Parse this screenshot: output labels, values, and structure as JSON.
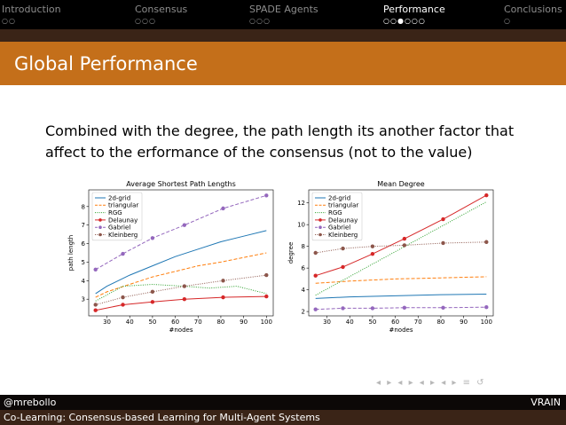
{
  "nav": {
    "sections": [
      {
        "label": "Introduction",
        "dots": "○○",
        "active": false
      },
      {
        "label": "Consensus",
        "dots": "○○○",
        "active": false
      },
      {
        "label": "SPADE Agents",
        "dots": "○○○",
        "active": false
      },
      {
        "label": "Performance",
        "dots": "○○●○○○",
        "active": true
      },
      {
        "label": "Conclusions",
        "dots": "○",
        "active": false
      }
    ]
  },
  "slide": {
    "title": "Global Performance",
    "body": "Combined with the degree, the path length its another factor that affect to the erformance of the consensus (not to the value)"
  },
  "footer": {
    "author": "@mrebollo",
    "institution": "VRAIN",
    "talk_title": "Co-Learning: Consensus-based Learning for Multi-Agent Systems"
  },
  "controls": {
    "nav_symbols": "◂ ▸ ◂ ▸ ◂ ▸ ◂ ▸ ≡ ↺"
  },
  "colors": {
    "nav_bg": "#000000",
    "title_bg": "#c46f1a",
    "footer_dark": "#0c0807",
    "footer_brown": "#3a2417"
  },
  "chart_data": [
    {
      "type": "line",
      "title": "Average Shortest Path Lengths",
      "xlabel": "#nodes",
      "ylabel": "path length",
      "xlim": [
        22,
        103
      ],
      "ylim": [
        2.1,
        8.9
      ],
      "xticks": [
        30,
        40,
        50,
        60,
        70,
        80,
        90,
        100
      ],
      "yticks": [
        3,
        4,
        5,
        6,
        7,
        8
      ],
      "legend": "top-left",
      "series": [
        {
          "name": "2d-grid",
          "color": "#1f77b4",
          "dash": "solid",
          "marker": false,
          "x": [
            25,
            30,
            35,
            40,
            50,
            60,
            70,
            80,
            90,
            100
          ],
          "y": [
            3.3,
            3.7,
            4.0,
            4.3,
            4.8,
            5.3,
            5.7,
            6.1,
            6.4,
            6.7
          ]
        },
        {
          "name": "triangular",
          "color": "#ff7f0e",
          "dash": "dashed",
          "marker": false,
          "x": [
            25,
            30,
            35,
            40,
            50,
            60,
            70,
            80,
            90,
            100
          ],
          "y": [
            3.1,
            3.4,
            3.6,
            3.8,
            4.2,
            4.5,
            4.8,
            5.0,
            5.25,
            5.5
          ]
        },
        {
          "name": "RGG",
          "color": "#2ca02c",
          "dash": "dotted",
          "marker": false,
          "x": [
            25,
            37,
            50,
            64,
            75,
            87,
            100
          ],
          "y": [
            2.9,
            3.7,
            3.8,
            3.7,
            3.6,
            3.7,
            3.3
          ]
        },
        {
          "name": "Delaunay",
          "color": "#d62728",
          "dash": "solid",
          "marker": true,
          "x": [
            25,
            37,
            50,
            64,
            81,
            100
          ],
          "y": [
            2.4,
            2.7,
            2.85,
            3.0,
            3.1,
            3.15
          ]
        },
        {
          "name": "Gabriel",
          "color": "#9467bd",
          "dash": "dashed",
          "marker": true,
          "x": [
            25,
            37,
            50,
            64,
            81,
            100
          ],
          "y": [
            4.6,
            5.45,
            6.3,
            7.0,
            7.9,
            8.6
          ]
        },
        {
          "name": "Kleinberg",
          "color": "#8c564b",
          "dash": "dotted",
          "marker": true,
          "x": [
            25,
            37,
            50,
            64,
            81,
            100
          ],
          "y": [
            2.7,
            3.1,
            3.4,
            3.7,
            4.0,
            4.3
          ]
        }
      ]
    },
    {
      "type": "line",
      "title": "Mean Degree",
      "xlabel": "#nodes",
      "ylabel": "degree",
      "xlim": [
        22,
        103
      ],
      "ylim": [
        1.6,
        13.2
      ],
      "xticks": [
        30,
        40,
        50,
        60,
        70,
        80,
        90,
        100
      ],
      "yticks": [
        2,
        4,
        6,
        8,
        10,
        12
      ],
      "legend": "top-left",
      "series": [
        {
          "name": "2d-grid",
          "color": "#1f77b4",
          "dash": "solid",
          "marker": false,
          "x": [
            25,
            40,
            60,
            80,
            100
          ],
          "y": [
            3.2,
            3.35,
            3.45,
            3.55,
            3.6
          ]
        },
        {
          "name": "triangular",
          "color": "#ff7f0e",
          "dash": "dashed",
          "marker": false,
          "x": [
            25,
            40,
            60,
            80,
            100
          ],
          "y": [
            4.6,
            4.8,
            5.0,
            5.1,
            5.2
          ]
        },
        {
          "name": "RGG",
          "color": "#2ca02c",
          "dash": "dotted",
          "marker": false,
          "x": [
            25,
            100
          ],
          "y": [
            3.5,
            12.1
          ]
        },
        {
          "name": "Delaunay",
          "color": "#d62728",
          "dash": "solid",
          "marker": true,
          "x": [
            25,
            37,
            50,
            64,
            81,
            100
          ],
          "y": [
            5.3,
            6.1,
            7.3,
            8.7,
            10.5,
            12.7
          ]
        },
        {
          "name": "Gabriel",
          "color": "#9467bd",
          "dash": "dashed",
          "marker": true,
          "x": [
            25,
            37,
            50,
            64,
            81,
            100
          ],
          "y": [
            2.2,
            2.3,
            2.3,
            2.35,
            2.35,
            2.4
          ]
        },
        {
          "name": "Kleinberg",
          "color": "#8c564b",
          "dash": "dotted",
          "marker": true,
          "x": [
            25,
            37,
            50,
            64,
            81,
            100
          ],
          "y": [
            7.4,
            7.8,
            8.0,
            8.1,
            8.3,
            8.4
          ]
        }
      ]
    }
  ]
}
